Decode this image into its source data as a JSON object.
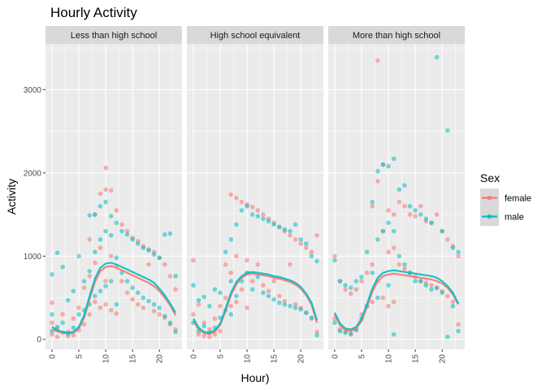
{
  "chart_data": {
    "type": "scatter",
    "title": "Hourly Activity",
    "xlabel": "Hour)",
    "ylabel": "Activity",
    "xlim": [
      -1.2,
      24.2
    ],
    "ylim": [
      -120,
      3550
    ],
    "x_ticks": [
      0,
      5,
      10,
      15,
      20
    ],
    "x_tick_labels": [
      "0",
      "5",
      "10",
      "15",
      "20"
    ],
    "y_ticks": [
      0,
      1000,
      2000,
      3000
    ],
    "y_tick_labels": [
      "0",
      "1000",
      "2000",
      "3000"
    ],
    "grid": true,
    "legend": {
      "title": "Sex",
      "position": "right",
      "entries": [
        "female",
        "male"
      ]
    },
    "colors": {
      "female": "#F8766D",
      "male": "#00BFC4",
      "panel_bg": "#EBEBEB",
      "strip_bg": "#D9D9D9",
      "grid": "#FFFFFF"
    },
    "facets": [
      {
        "label": "Less than high school",
        "smooth": [
          {
            "name": "female",
            "x": [
              0,
              1,
              2,
              3,
              4,
              5,
              6,
              7,
              8,
              9,
              10,
              11,
              12,
              13,
              14,
              15,
              16,
              17,
              18,
              19,
              20,
              21,
              22,
              23
            ],
            "y": [
              120,
              95,
              80,
              70,
              80,
              130,
              260,
              480,
              690,
              820,
              870,
              880,
              860,
              830,
              800,
              770,
              740,
              710,
              680,
              640,
              580,
              500,
              410,
              290
            ]
          },
          {
            "name": "male",
            "x": [
              0,
              1,
              2,
              3,
              4,
              5,
              6,
              7,
              8,
              9,
              10,
              11,
              12,
              13,
              14,
              15,
              16,
              17,
              18,
              19,
              20,
              21,
              22,
              23
            ],
            "y": [
              150,
              110,
              90,
              80,
              90,
              150,
              290,
              520,
              730,
              860,
              910,
              920,
              900,
              870,
              840,
              810,
              780,
              750,
              720,
              680,
              610,
              530,
              430,
              320
            ]
          }
        ],
        "points": [
          {
            "name": "female",
            "x": [
              0,
              0,
              0,
              1,
              1,
              2,
              2,
              3,
              3,
              4,
              4,
              5,
              5,
              6,
              6,
              7,
              7,
              7,
              8,
              8,
              8,
              9,
              9,
              9,
              10,
              10,
              10,
              10,
              11,
              11,
              11,
              12,
              12,
              12,
              13,
              13,
              14,
              14,
              15,
              15,
              16,
              16,
              17,
              17,
              18,
              18,
              19,
              19,
              20,
              20,
              21,
              21,
              22,
              22,
              23,
              23
            ],
            "y": [
              60,
              200,
              440,
              30,
              130,
              80,
              300,
              40,
              90,
              50,
              250,
              110,
              380,
              180,
              620,
              300,
              760,
              1200,
              450,
              920,
              1500,
              380,
              1100,
              1750,
              2060,
              1800,
              700,
              420,
              1790,
              1000,
              350,
              1550,
              880,
              310,
              1380,
              700,
              1300,
              560,
              1220,
              480,
              1180,
              420,
              1120,
              380,
              1080,
              900,
              1050,
              340,
              980,
              300,
              900,
              260,
              760,
              180,
              600,
              120
            ]
          },
          {
            "name": "male",
            "x": [
              0,
              0,
              0,
              1,
              1,
              2,
              2,
              3,
              3,
              4,
              4,
              5,
              5,
              6,
              6,
              7,
              7,
              7,
              8,
              8,
              8,
              9,
              9,
              9,
              10,
              10,
              10,
              11,
              11,
              11,
              12,
              12,
              12,
              13,
              13,
              14,
              14,
              15,
              15,
              16,
              16,
              17,
              17,
              18,
              18,
              19,
              19,
              20,
              20,
              21,
              21,
              22,
              22,
              23,
              23
            ],
            "y": [
              780,
              300,
              100,
              1040,
              150,
              870,
              200,
              470,
              70,
              580,
              140,
              1000,
              300,
              700,
              350,
              1490,
              820,
              420,
              1500,
              1050,
              520,
              1600,
              1200,
              580,
              1650,
              1300,
              640,
              1480,
              1250,
              700,
              1400,
              980,
              420,
              1300,
              800,
              1260,
              700,
              1200,
              620,
              1150,
              560,
              1100,
              500,
              1070,
              460,
              1020,
              420,
              980,
              380,
              1260,
              280,
              1270,
              200,
              760,
              90
            ]
          }
        ]
      },
      {
        "label": "High school equivalent",
        "smooth": [
          {
            "name": "female",
            "x": [
              0,
              1,
              2,
              3,
              4,
              5,
              6,
              7,
              8,
              9,
              10,
              11,
              12,
              13,
              14,
              15,
              16,
              17,
              18,
              19,
              20,
              21,
              22,
              23
            ],
            "y": [
              220,
              120,
              75,
              65,
              90,
              170,
              340,
              530,
              660,
              740,
              780,
              790,
              780,
              770,
              760,
              740,
              730,
              710,
              690,
              660,
              610,
              530,
              420,
              200
            ]
          },
          {
            "name": "male",
            "x": [
              0,
              1,
              2,
              3,
              4,
              5,
              6,
              7,
              8,
              9,
              10,
              11,
              12,
              13,
              14,
              15,
              16,
              17,
              18,
              19,
              20,
              21,
              22,
              23
            ],
            "y": [
              250,
              140,
              90,
              80,
              110,
              190,
              370,
              560,
              690,
              760,
              800,
              810,
              800,
              790,
              780,
              760,
              750,
              730,
              710,
              680,
              630,
              550,
              440,
              230
            ]
          }
        ],
        "points": [
          {
            "name": "female",
            "x": [
              0,
              0,
              1,
              1,
              2,
              2,
              3,
              3,
              4,
              4,
              5,
              5,
              6,
              6,
              7,
              7,
              7,
              8,
              8,
              8,
              9,
              9,
              10,
              10,
              10,
              11,
              11,
              12,
              12,
              13,
              13,
              14,
              14,
              15,
              15,
              16,
              16,
              17,
              17,
              18,
              18,
              19,
              19,
              20,
              20,
              21,
              21,
              22,
              22,
              23,
              23
            ],
            "y": [
              950,
              300,
              60,
              420,
              40,
              200,
              30,
              120,
              60,
              250,
              100,
              400,
              500,
              900,
              1740,
              800,
              400,
              1700,
              1000,
              450,
              1650,
              600,
              1620,
              950,
              380,
              1590,
              700,
              1550,
              900,
              1500,
              650,
              1450,
              580,
              1400,
              700,
              1350,
              520,
              1300,
              460,
              1250,
              900,
              1200,
              420,
              1150,
              380,
              1100,
              320,
              1050,
              250,
              1250,
              90
            ]
          },
          {
            "name": "male",
            "x": [
              0,
              0,
              1,
              1,
              2,
              2,
              3,
              3,
              4,
              4,
              5,
              5,
              6,
              6,
              7,
              7,
              7,
              8,
              8,
              9,
              9,
              10,
              10,
              11,
              11,
              12,
              12,
              13,
              13,
              14,
              14,
              15,
              15,
              16,
              16,
              17,
              17,
              18,
              18,
              19,
              19,
              20,
              20,
              21,
              21,
              22,
              22,
              23,
              23
            ],
            "y": [
              650,
              200,
              470,
              100,
              510,
              160,
              400,
              80,
              600,
              140,
              560,
              260,
              1050,
              350,
              1200,
              700,
              300,
              1380,
              520,
              1550,
              700,
              1600,
              800,
              1500,
              600,
              1480,
              750,
              1450,
              560,
              1420,
              520,
              1380,
              480,
              1350,
              440,
              1320,
              420,
              1300,
              400,
              1380,
              380,
              1200,
              360,
              1150,
              320,
              1000,
              260,
              940,
              50
            ]
          }
        ]
      },
      {
        "label": "More than high school",
        "smooth": [
          {
            "name": "female",
            "x": [
              0,
              1,
              2,
              3,
              4,
              5,
              6,
              7,
              8,
              9,
              10,
              11,
              12,
              13,
              14,
              15,
              16,
              17,
              18,
              19,
              20,
              21,
              22,
              23
            ],
            "y": [
              300,
              170,
              110,
              100,
              130,
              220,
              390,
              570,
              700,
              760,
              780,
              790,
              780,
              770,
              760,
              750,
              740,
              730,
              720,
              700,
              670,
              620,
              540,
              420
            ]
          },
          {
            "name": "male",
            "x": [
              0,
              1,
              2,
              3,
              4,
              5,
              6,
              7,
              8,
              9,
              10,
              11,
              12,
              13,
              14,
              15,
              16,
              17,
              18,
              19,
              20,
              21,
              22,
              23
            ],
            "y": [
              320,
              190,
              130,
              120,
              150,
              250,
              420,
              610,
              740,
              800,
              820,
              830,
              820,
              810,
              800,
              790,
              780,
              770,
              760,
              740,
              700,
              640,
              560,
              430
            ]
          }
        ],
        "points": [
          {
            "name": "female",
            "x": [
              0,
              0,
              1,
              1,
              2,
              2,
              3,
              3,
              4,
              4,
              5,
              5,
              6,
              6,
              7,
              7,
              7,
              8,
              8,
              8,
              9,
              9,
              9,
              10,
              10,
              10,
              11,
              11,
              11,
              12,
              12,
              13,
              13,
              14,
              14,
              15,
              15,
              16,
              16,
              17,
              17,
              18,
              18,
              19,
              19,
              20,
              20,
              21,
              21,
              22,
              22,
              23,
              23
            ],
            "y": [
              1000,
              250,
              700,
              120,
              600,
              90,
              550,
              70,
              600,
              110,
              700,
              300,
              800,
              400,
              1600,
              900,
              450,
              3350,
              1900,
              700,
              2100,
              1300,
              500,
              1550,
              1050,
              400,
              1500,
              1100,
              450,
              1650,
              900,
              1600,
              850,
              1500,
              800,
              1480,
              750,
              1600,
              700,
              1420,
              680,
              1400,
              650,
              1500,
              620,
              1300,
              580,
              1200,
              520,
              1120,
              450,
              1000,
              180
            ]
          },
          {
            "name": "male",
            "x": [
              0,
              0,
              1,
              1,
              2,
              2,
              3,
              3,
              4,
              4,
              5,
              5,
              6,
              6,
              7,
              7,
              8,
              8,
              8,
              9,
              9,
              10,
              10,
              10,
              11,
              11,
              11,
              12,
              12,
              13,
              13,
              14,
              14,
              15,
              15,
              16,
              16,
              17,
              17,
              18,
              18,
              19,
              19,
              20,
              20,
              21,
              21,
              22,
              22,
              23,
              23
            ],
            "y": [
              950,
              200,
              700,
              100,
              650,
              80,
              620,
              60,
              700,
              120,
              750,
              250,
              1050,
              400,
              1650,
              800,
              2020,
              1200,
              500,
              2100,
              1300,
              2080,
              1400,
              650,
              2170,
              1300,
              60,
              1800,
              1000,
              1850,
              900,
              1600,
              800,
              1550,
              700,
              1500,
              700,
              1450,
              650,
              1400,
              600,
              3390,
              620,
              1300,
              560,
              2510,
              30,
              1100,
              400,
              1050,
              100
            ]
          }
        ]
      }
    ]
  }
}
